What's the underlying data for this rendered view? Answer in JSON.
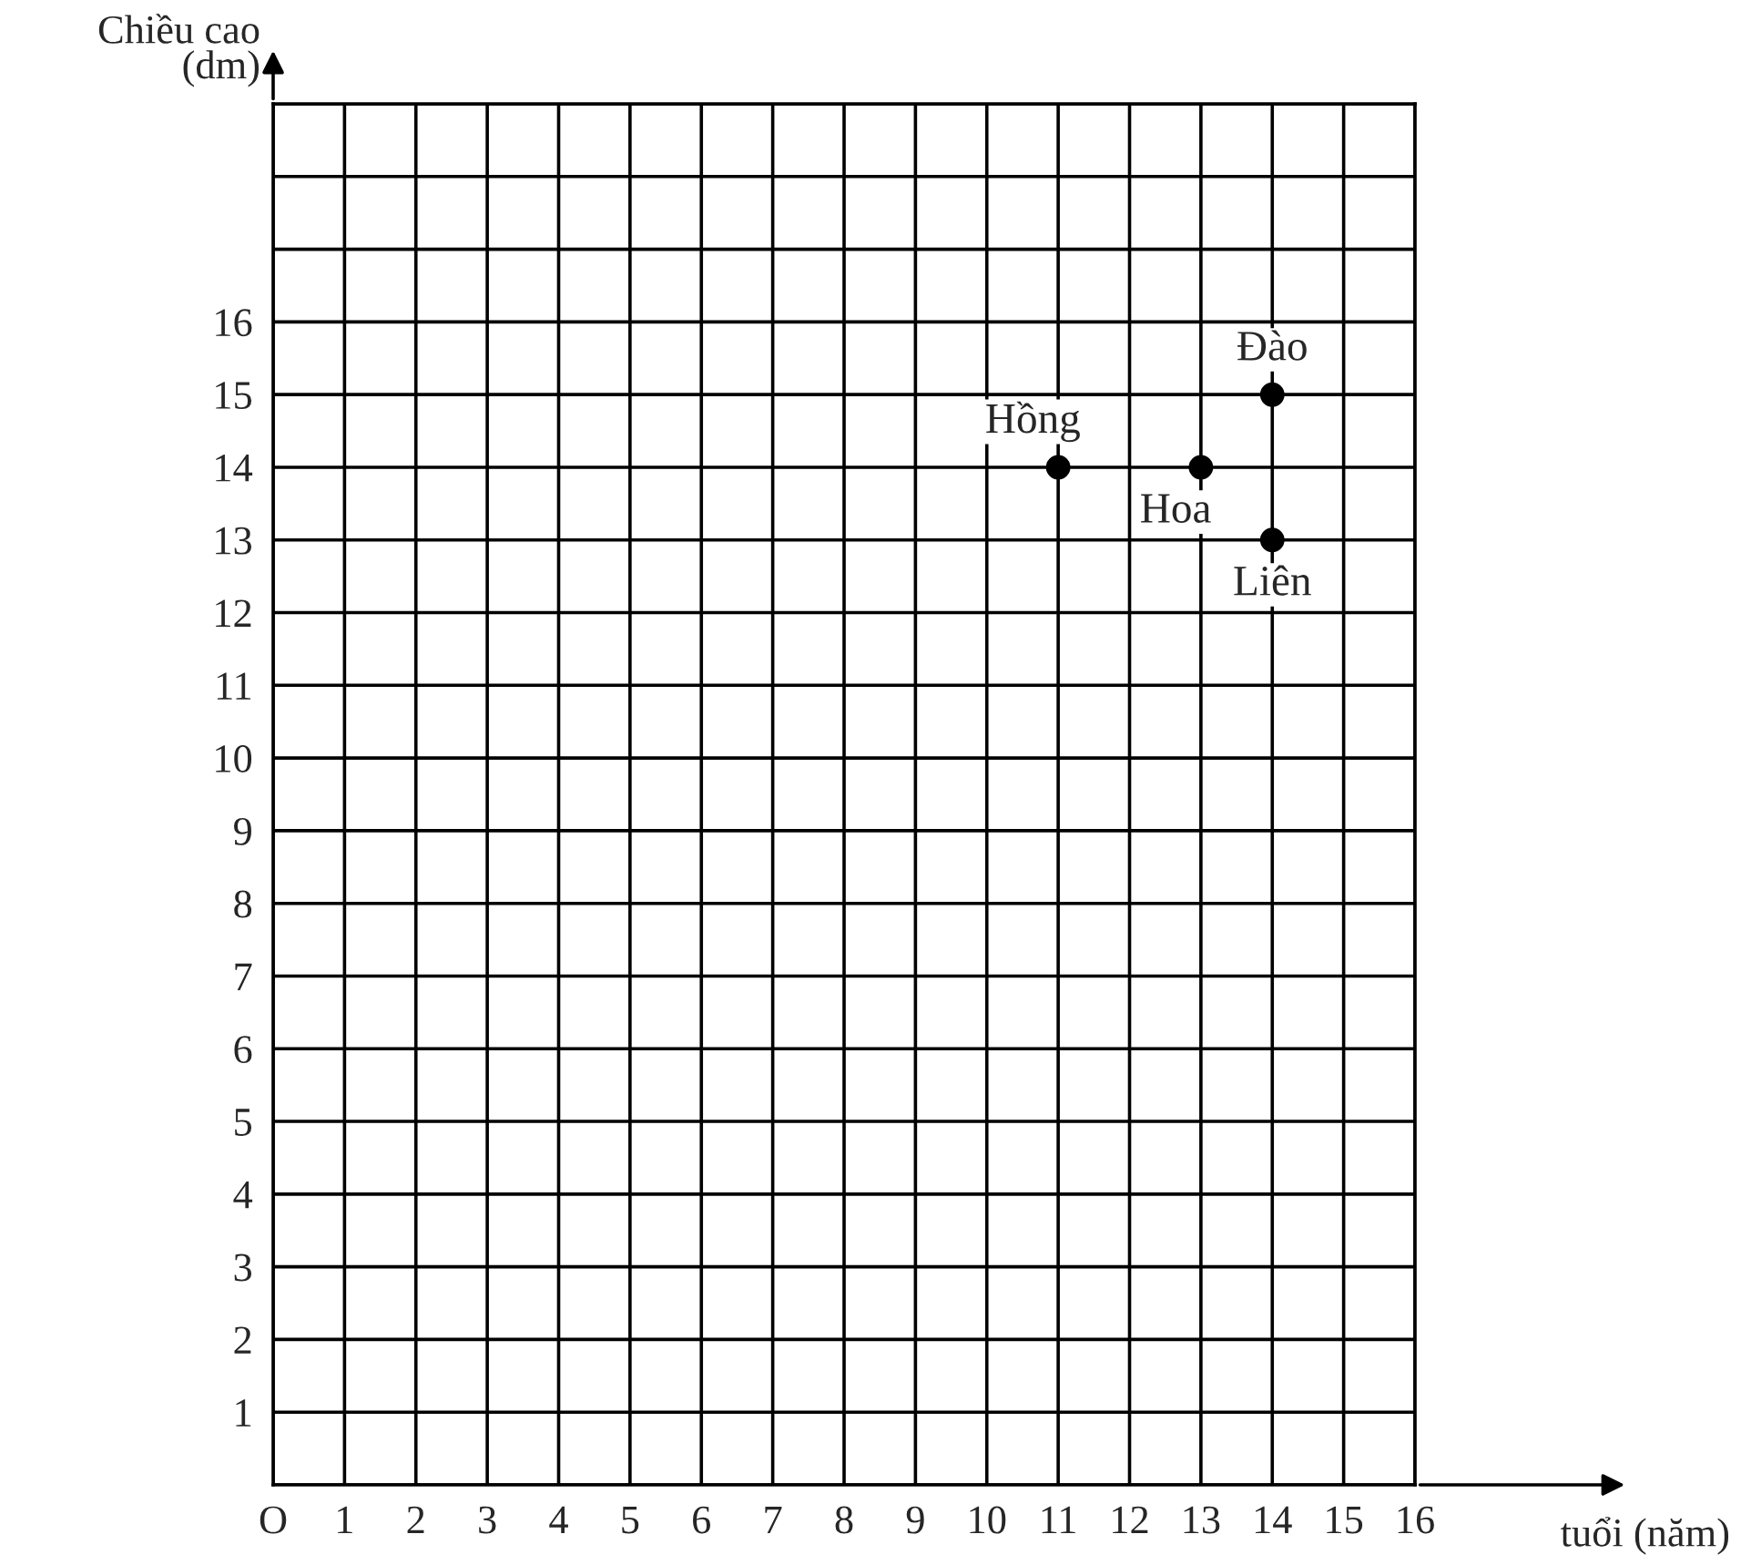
{
  "chart_data": {
    "type": "scatter",
    "xlabel": "tuổi (năm)",
    "ylabel": "Chiều cao\n(dm)",
    "x": [
      11,
      13,
      14,
      14
    ],
    "values": [
      14,
      14,
      15,
      13
    ],
    "color": "#000000",
    "marker": "circle",
    "annotations": [
      {
        "text": "Hồng",
        "x": 11,
        "y": 14
      },
      {
        "text": "Hoa",
        "x": 13,
        "y": 14
      },
      {
        "text": "Đào",
        "x": 14,
        "y": 15
      },
      {
        "text": "Liên",
        "x": 14,
        "y": 13
      }
    ],
    "xlim": [
      0,
      16
    ],
    "ylim": [
      0,
      19
    ],
    "xticks": [
      {
        "value": 0,
        "label": "O"
      },
      1,
      2,
      3,
      4,
      5,
      6,
      7,
      8,
      9,
      10,
      11,
      12,
      13,
      14,
      15,
      16
    ],
    "yticks": [
      {
        "value": 0,
        "label": null
      },
      1,
      2,
      3,
      4,
      5,
      6,
      7,
      8,
      9,
      10,
      11,
      12,
      13,
      14,
      15,
      16,
      {
        "value": 17,
        "label": null
      },
      {
        "value": 18,
        "label": null
      },
      {
        "value": 19,
        "label": null
      }
    ],
    "grid": true
  }
}
